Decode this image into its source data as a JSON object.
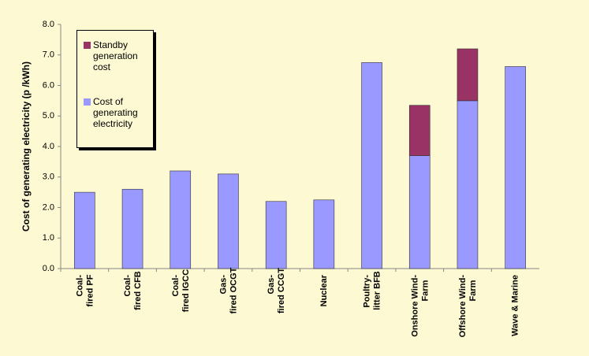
{
  "chart_data": {
    "type": "stacked-bar",
    "y_label": "Cost of generating electricity (p /kWh)",
    "categories": [
      "Coal-fired PF",
      "Coal-fired CFB",
      "Coal-fired IGCC",
      "Gas-fired OCGT",
      "Gas-fired CCGT",
      "Nuclear",
      "Poultry-litter BFB",
      "Onshore Wind-Farm",
      "Offshore Wind-Farm",
      "Wave & Marine"
    ],
    "series": [
      {
        "name": "Cost of generating electricity",
        "color": "#9999ff",
        "values": [
          2.5,
          2.6,
          3.2,
          3.1,
          2.2,
          2.25,
          6.75,
          3.7,
          5.5,
          6.62
        ]
      },
      {
        "name": "Standby generation cost",
        "color": "#993366",
        "values": [
          null,
          null,
          null,
          null,
          null,
          null,
          null,
          1.65,
          1.7,
          null
        ]
      }
    ],
    "ylim": [
      0,
      8
    ],
    "yticks": [
      {
        "value": 0,
        "label": "0.0"
      },
      {
        "value": 1,
        "label": "1.0"
      },
      {
        "value": 2,
        "label": "2.0"
      },
      {
        "value": 3,
        "label": "3.0"
      },
      {
        "value": 4,
        "label": "4.0"
      },
      {
        "value": 5,
        "label": "5.0"
      },
      {
        "value": 6,
        "label": "6.0"
      },
      {
        "value": 7,
        "label": "7.0"
      },
      {
        "value": 8,
        "label": "8.0"
      }
    ],
    "grid": false
  }
}
